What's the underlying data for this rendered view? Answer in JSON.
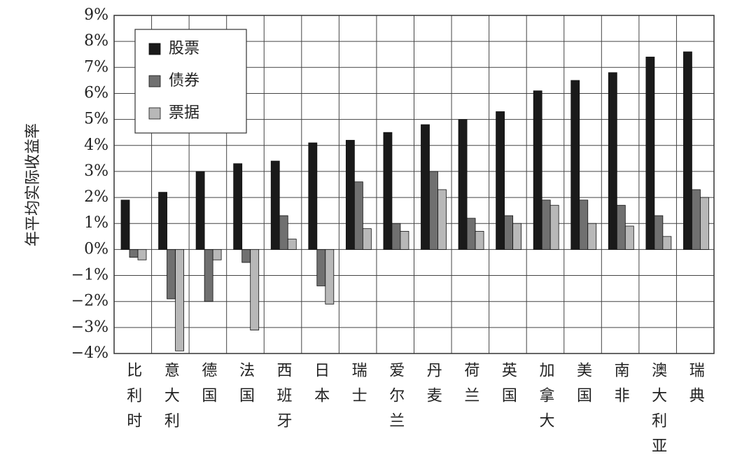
{
  "chart_data": {
    "type": "bar",
    "y_label": "年平均实际收益率",
    "categories": [
      "比利时",
      "意大利",
      "德国",
      "法国",
      "西班牙",
      "日本",
      "瑞士",
      "爱尔兰",
      "丹麦",
      "荷兰",
      "英国",
      "加拿大",
      "美国",
      "南非",
      "澳大利亚",
      "瑞典"
    ],
    "series": [
      {
        "name": "股票",
        "color": "#1a1a1a",
        "values": [
          1.9,
          2.2,
          3.0,
          3.3,
          3.4,
          4.1,
          4.2,
          4.5,
          4.8,
          5.0,
          5.3,
          6.1,
          6.5,
          6.8,
          7.4,
          7.6
        ]
      },
      {
        "name": "债券",
        "color": "#707070",
        "values": [
          -0.3,
          -1.9,
          -2.0,
          -0.5,
          1.3,
          -1.4,
          2.6,
          1.0,
          3.0,
          1.2,
          1.3,
          1.9,
          1.9,
          1.7,
          1.3,
          2.3
        ]
      },
      {
        "name": "票据",
        "color": "#b8b8b8",
        "values": [
          -0.4,
          -3.9,
          -0.4,
          -3.1,
          0.4,
          -2.1,
          0.8,
          0.7,
          2.3,
          0.7,
          1.0,
          1.7,
          1.0,
          0.9,
          0.5,
          2.0
        ]
      }
    ],
    "ylim": [
      -4,
      9
    ],
    "yticks": [
      {
        "value": -4,
        "label": "−4%"
      },
      {
        "value": -3,
        "label": "−3%"
      },
      {
        "value": -2,
        "label": "−2%"
      },
      {
        "value": -1,
        "label": "−1%"
      },
      {
        "value": 0,
        "label": "0%"
      },
      {
        "value": 1,
        "label": "1%"
      },
      {
        "value": 2,
        "label": "2%"
      },
      {
        "value": 3,
        "label": "3%"
      },
      {
        "value": 4,
        "label": "4%"
      },
      {
        "value": 5,
        "label": "5%"
      },
      {
        "value": 6,
        "label": "6%"
      },
      {
        "value": 7,
        "label": "7%"
      },
      {
        "value": 8,
        "label": "8%"
      },
      {
        "value": 9,
        "label": "9%"
      }
    ],
    "grid": true,
    "legend": "upper-left"
  }
}
